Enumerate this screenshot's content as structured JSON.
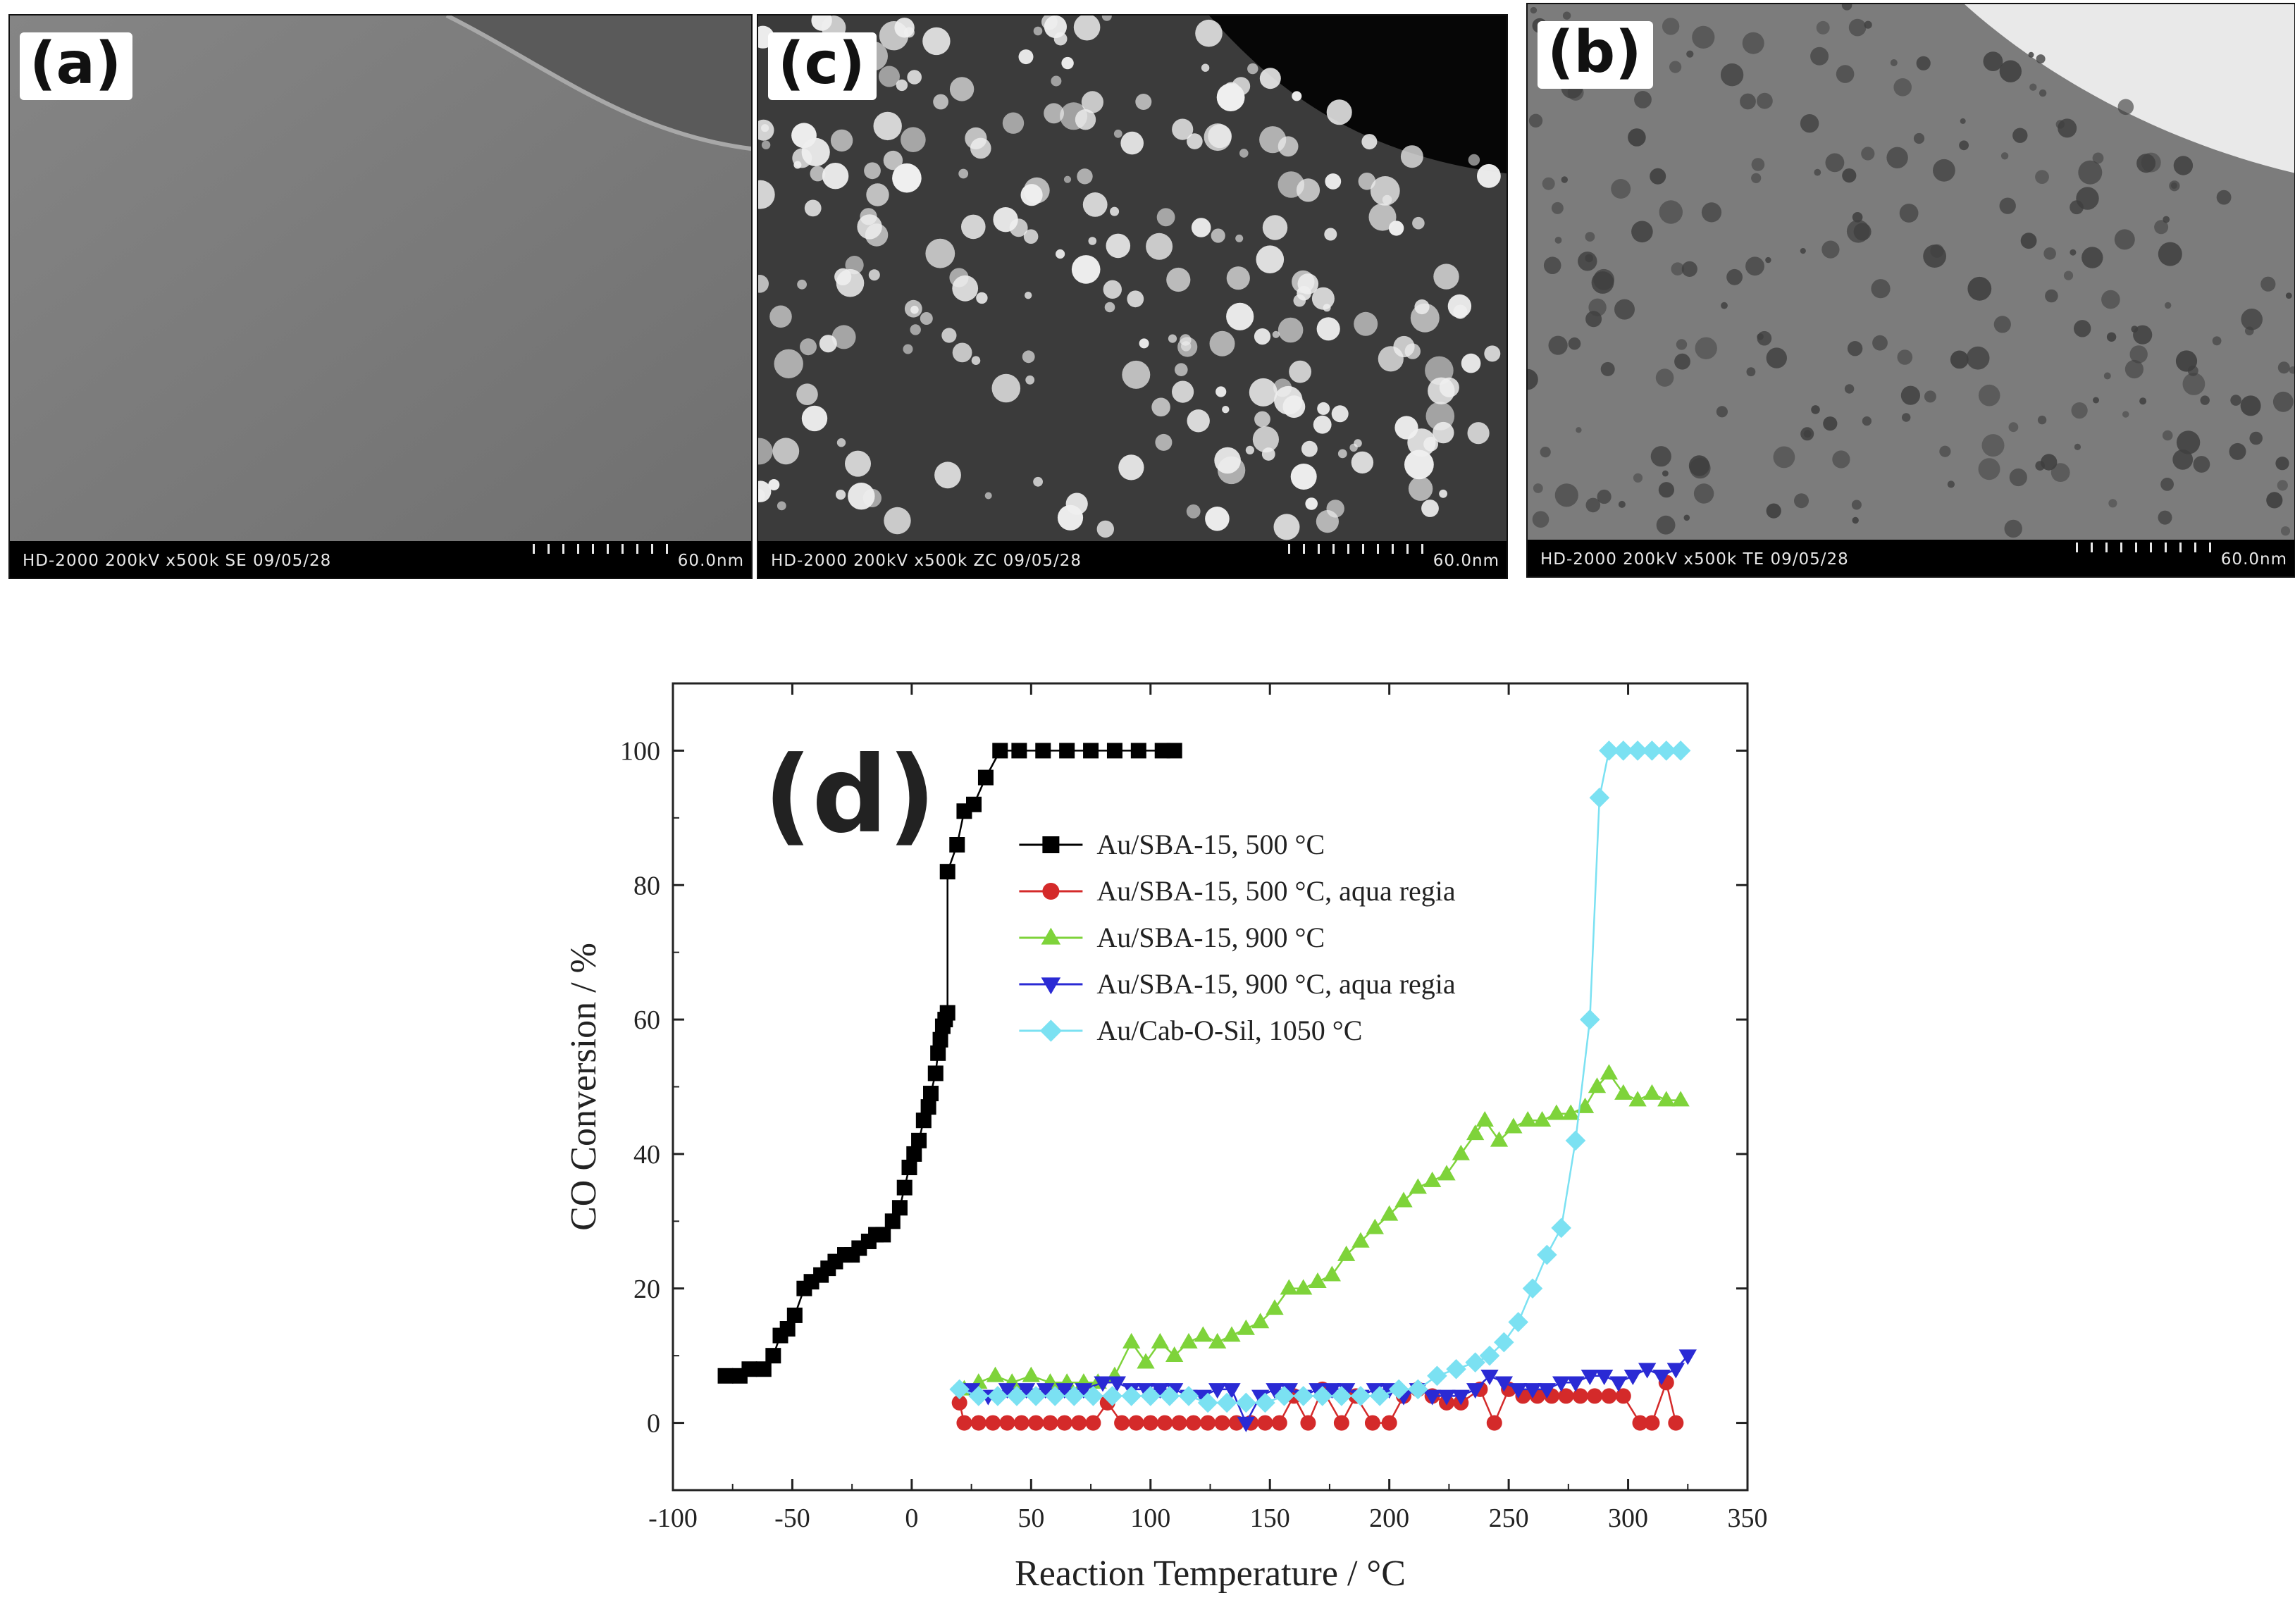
{
  "panels": [
    {
      "label": "(a)",
      "info": "HD-2000  200kV  x500k  SE  09/05/28",
      "scale": "60.0nm"
    },
    {
      "label": "(c)",
      "info": "HD-2000  200kV  x500k  ZC  09/05/28",
      "scale": "60.0nm"
    },
    {
      "label": "(b)",
      "info": "HD-2000  200kV  x500k  TE  09/05/28",
      "scale": "60.0nm"
    }
  ],
  "chart_data": {
    "type": "scatter",
    "panel_label": "(d)",
    "xlabel": "Reaction Temperature / °C",
    "ylabel": "CO Conversion / %",
    "xlim": [
      -100,
      350
    ],
    "ylim": [
      -10,
      110
    ],
    "xticks": [
      -100,
      -50,
      0,
      50,
      100,
      150,
      200,
      250,
      300,
      350
    ],
    "yticks": [
      0,
      20,
      40,
      60,
      80,
      100
    ],
    "legend_position": "upper-middle",
    "series": [
      {
        "name": "Au/SBA-15, 500 °C",
        "color": "#000000",
        "marker": "square",
        "points": [
          [
            -78,
            7
          ],
          [
            -72,
            7
          ],
          [
            -68,
            8
          ],
          [
            -62,
            8
          ],
          [
            -58,
            10
          ],
          [
            -55,
            13
          ],
          [
            -52,
            14
          ],
          [
            -49,
            16
          ],
          [
            -45,
            20
          ],
          [
            -42,
            21
          ],
          [
            -38,
            22
          ],
          [
            -35,
            23
          ],
          [
            -32,
            24
          ],
          [
            -28,
            25
          ],
          [
            -25,
            25
          ],
          [
            -22,
            26
          ],
          [
            -18,
            27
          ],
          [
            -15,
            28
          ],
          [
            -12,
            28
          ],
          [
            -8,
            30
          ],
          [
            -5,
            32
          ],
          [
            -3,
            35
          ],
          [
            -1,
            38
          ],
          [
            1,
            40
          ],
          [
            3,
            42
          ],
          [
            5,
            45
          ],
          [
            7,
            47
          ],
          [
            8,
            49
          ],
          [
            10,
            52
          ],
          [
            11,
            55
          ],
          [
            12,
            57
          ],
          [
            13,
            59
          ],
          [
            14,
            60
          ],
          [
            15,
            61
          ],
          [
            15,
            82
          ],
          [
            19,
            86
          ],
          [
            22,
            91
          ],
          [
            26,
            92
          ],
          [
            31,
            96
          ],
          [
            37,
            100
          ],
          [
            45,
            100
          ],
          [
            55,
            100
          ],
          [
            65,
            100
          ],
          [
            75,
            100
          ],
          [
            85,
            100
          ],
          [
            95,
            100
          ],
          [
            105,
            100
          ],
          [
            110,
            100
          ]
        ]
      },
      {
        "name": "Au/SBA-15, 500 °C, aqua regia",
        "color": "#d42a2a",
        "marker": "circle",
        "points": [
          [
            20,
            3
          ],
          [
            22,
            0
          ],
          [
            28,
            0
          ],
          [
            34,
            0
          ],
          [
            40,
            0
          ],
          [
            46,
            0
          ],
          [
            52,
            0
          ],
          [
            58,
            0
          ],
          [
            64,
            0
          ],
          [
            70,
            0
          ],
          [
            76,
            0
          ],
          [
            82,
            3
          ],
          [
            88,
            0
          ],
          [
            94,
            0
          ],
          [
            100,
            0
          ],
          [
            106,
            0
          ],
          [
            112,
            0
          ],
          [
            118,
            0
          ],
          [
            124,
            0
          ],
          [
            130,
            0
          ],
          [
            136,
            0
          ],
          [
            142,
            0
          ],
          [
            148,
            0
          ],
          [
            154,
            0
          ],
          [
            160,
            4
          ],
          [
            166,
            0
          ],
          [
            172,
            5
          ],
          [
            180,
            0
          ],
          [
            186,
            4
          ],
          [
            193,
            0
          ],
          [
            200,
            0
          ],
          [
            206,
            4
          ],
          [
            212,
            5
          ],
          [
            218,
            4
          ],
          [
            224,
            3
          ],
          [
            230,
            3
          ],
          [
            238,
            5
          ],
          [
            244,
            0
          ],
          [
            250,
            5
          ],
          [
            256,
            4
          ],
          [
            262,
            4
          ],
          [
            268,
            4
          ],
          [
            274,
            4
          ],
          [
            280,
            4
          ],
          [
            286,
            4
          ],
          [
            292,
            4
          ],
          [
            298,
            4
          ],
          [
            305,
            0
          ],
          [
            310,
            0
          ],
          [
            316,
            6
          ],
          [
            320,
            0
          ]
        ]
      },
      {
        "name": "Au/SBA-15, 900 °C",
        "color": "#7ed33a",
        "marker": "triangle-up",
        "points": [
          [
            22,
            5
          ],
          [
            28,
            6
          ],
          [
            35,
            7
          ],
          [
            42,
            6
          ],
          [
            50,
            7
          ],
          [
            58,
            6
          ],
          [
            65,
            6
          ],
          [
            72,
            6
          ],
          [
            78,
            6
          ],
          [
            85,
            7
          ],
          [
            92,
            12
          ],
          [
            98,
            9
          ],
          [
            104,
            12
          ],
          [
            110,
            10
          ],
          [
            116,
            12
          ],
          [
            122,
            13
          ],
          [
            128,
            12
          ],
          [
            134,
            13
          ],
          [
            140,
            14
          ],
          [
            146,
            15
          ],
          [
            152,
            17
          ],
          [
            158,
            20
          ],
          [
            164,
            20
          ],
          [
            170,
            21
          ],
          [
            176,
            22
          ],
          [
            182,
            25
          ],
          [
            188,
            27
          ],
          [
            194,
            29
          ],
          [
            200,
            31
          ],
          [
            206,
            33
          ],
          [
            212,
            35
          ],
          [
            218,
            36
          ],
          [
            224,
            37
          ],
          [
            230,
            40
          ],
          [
            236,
            43
          ],
          [
            240,
            45
          ],
          [
            246,
            42
          ],
          [
            252,
            44
          ],
          [
            258,
            45
          ],
          [
            264,
            45
          ],
          [
            270,
            46
          ],
          [
            276,
            46
          ],
          [
            282,
            47
          ],
          [
            287,
            50
          ],
          [
            292,
            52
          ],
          [
            298,
            49
          ],
          [
            304,
            48
          ],
          [
            310,
            49
          ],
          [
            316,
            48
          ],
          [
            322,
            48
          ]
        ]
      },
      {
        "name": "Au/SBA-15, 900 °C, aqua regia",
        "color": "#2a2ad4",
        "marker": "triangle-down",
        "points": [
          [
            25,
            5
          ],
          [
            32,
            4
          ],
          [
            40,
            5
          ],
          [
            48,
            5
          ],
          [
            56,
            5
          ],
          [
            64,
            5
          ],
          [
            72,
            5
          ],
          [
            80,
            6
          ],
          [
            86,
            6
          ],
          [
            92,
            5
          ],
          [
            98,
            5
          ],
          [
            104,
            5
          ],
          [
            110,
            5
          ],
          [
            116,
            4
          ],
          [
            122,
            4
          ],
          [
            128,
            5
          ],
          [
            134,
            5
          ],
          [
            140,
            0
          ],
          [
            146,
            4
          ],
          [
            152,
            5
          ],
          [
            158,
            5
          ],
          [
            164,
            4
          ],
          [
            170,
            5
          ],
          [
            176,
            5
          ],
          [
            182,
            5
          ],
          [
            188,
            4
          ],
          [
            194,
            5
          ],
          [
            200,
            5
          ],
          [
            206,
            4
          ],
          [
            212,
            5
          ],
          [
            218,
            4
          ],
          [
            224,
            4
          ],
          [
            230,
            4
          ],
          [
            236,
            5
          ],
          [
            242,
            7
          ],
          [
            248,
            6
          ],
          [
            254,
            5
          ],
          [
            260,
            5
          ],
          [
            266,
            5
          ],
          [
            272,
            6
          ],
          [
            278,
            6
          ],
          [
            284,
            7
          ],
          [
            290,
            7
          ],
          [
            296,
            6
          ],
          [
            302,
            7
          ],
          [
            308,
            8
          ],
          [
            314,
            7
          ],
          [
            320,
            8
          ],
          [
            325,
            10
          ]
        ]
      },
      {
        "name": "Au/Cab-O-Sil, 1050 °C",
        "color": "#7be1f2",
        "marker": "diamond",
        "points": [
          [
            20,
            5
          ],
          [
            28,
            4
          ],
          [
            36,
            4
          ],
          [
            44,
            4
          ],
          [
            52,
            4
          ],
          [
            60,
            4
          ],
          [
            68,
            4
          ],
          [
            76,
            4
          ],
          [
            84,
            4
          ],
          [
            92,
            4
          ],
          [
            100,
            4
          ],
          [
            108,
            4
          ],
          [
            116,
            4
          ],
          [
            124,
            3
          ],
          [
            132,
            3
          ],
          [
            140,
            3
          ],
          [
            148,
            3
          ],
          [
            156,
            4
          ],
          [
            164,
            4
          ],
          [
            172,
            4
          ],
          [
            180,
            4
          ],
          [
            188,
            4
          ],
          [
            196,
            4
          ],
          [
            204,
            5
          ],
          [
            212,
            5
          ],
          [
            220,
            7
          ],
          [
            228,
            8
          ],
          [
            236,
            9
          ],
          [
            242,
            10
          ],
          [
            248,
            12
          ],
          [
            254,
            15
          ],
          [
            260,
            20
          ],
          [
            266,
            25
          ],
          [
            272,
            29
          ],
          [
            278,
            42
          ],
          [
            284,
            60
          ],
          [
            288,
            93
          ],
          [
            292,
            100
          ],
          [
            298,
            100
          ],
          [
            304,
            100
          ],
          [
            310,
            100
          ],
          [
            316,
            100
          ],
          [
            322,
            100
          ]
        ]
      }
    ]
  }
}
